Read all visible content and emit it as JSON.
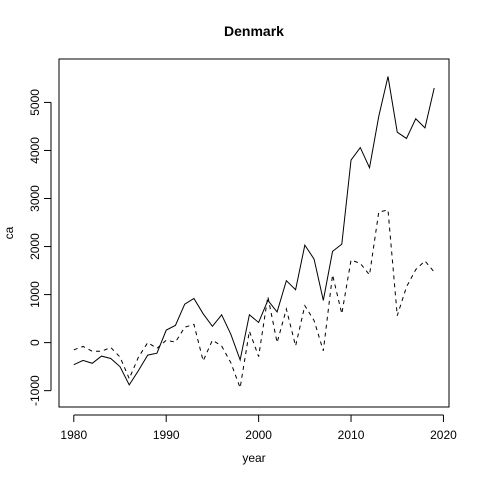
{
  "chart_data": {
    "type": "line",
    "title": "Denmark",
    "xlabel": "year",
    "ylabel": "ca",
    "xlim": [
      1978.4,
      2020.6
    ],
    "ylim": [
      -1340,
      5904
    ],
    "x_ticks": [
      1980,
      1990,
      2000,
      2010,
      2020
    ],
    "y_ticks": [
      -1000,
      0,
      1000,
      2000,
      3000,
      4000,
      5000
    ],
    "x": [
      1980,
      1981,
      1982,
      1983,
      1984,
      1985,
      1986,
      1987,
      1988,
      1989,
      1990,
      1991,
      1992,
      1993,
      1994,
      1995,
      1996,
      1997,
      1998,
      1999,
      2000,
      2001,
      2002,
      2003,
      2004,
      2005,
      2006,
      2007,
      2008,
      2009,
      2010,
      2011,
      2012,
      2013,
      2014,
      2015,
      2016,
      2017,
      2018,
      2019
    ],
    "series": [
      {
        "line_style": "solid",
        "values": [
          -460,
          -370,
          -430,
          -280,
          -330,
          -500,
          -880,
          -580,
          -260,
          -220,
          260,
          360,
          800,
          920,
          600,
          340,
          580,
          170,
          -360,
          580,
          420,
          880,
          640,
          1290,
          1100,
          2030,
          1740,
          880,
          1900,
          2050,
          3800,
          4060,
          3640,
          4710,
          5540,
          4380,
          4250,
          4660,
          4470,
          5300
        ]
      },
      {
        "line_style": "dashed",
        "values": [
          -150,
          -80,
          -180,
          -180,
          -100,
          -300,
          -750,
          -300,
          0,
          -120,
          50,
          10,
          320,
          380,
          -380,
          50,
          -70,
          -420,
          -940,
          240,
          -290,
          960,
          0,
          700,
          -70,
          770,
          460,
          -170,
          1410,
          600,
          1720,
          1650,
          1410,
          2720,
          2760,
          560,
          1160,
          1520,
          1700,
          1470
        ]
      }
    ],
    "grid": false,
    "legend": "none"
  }
}
